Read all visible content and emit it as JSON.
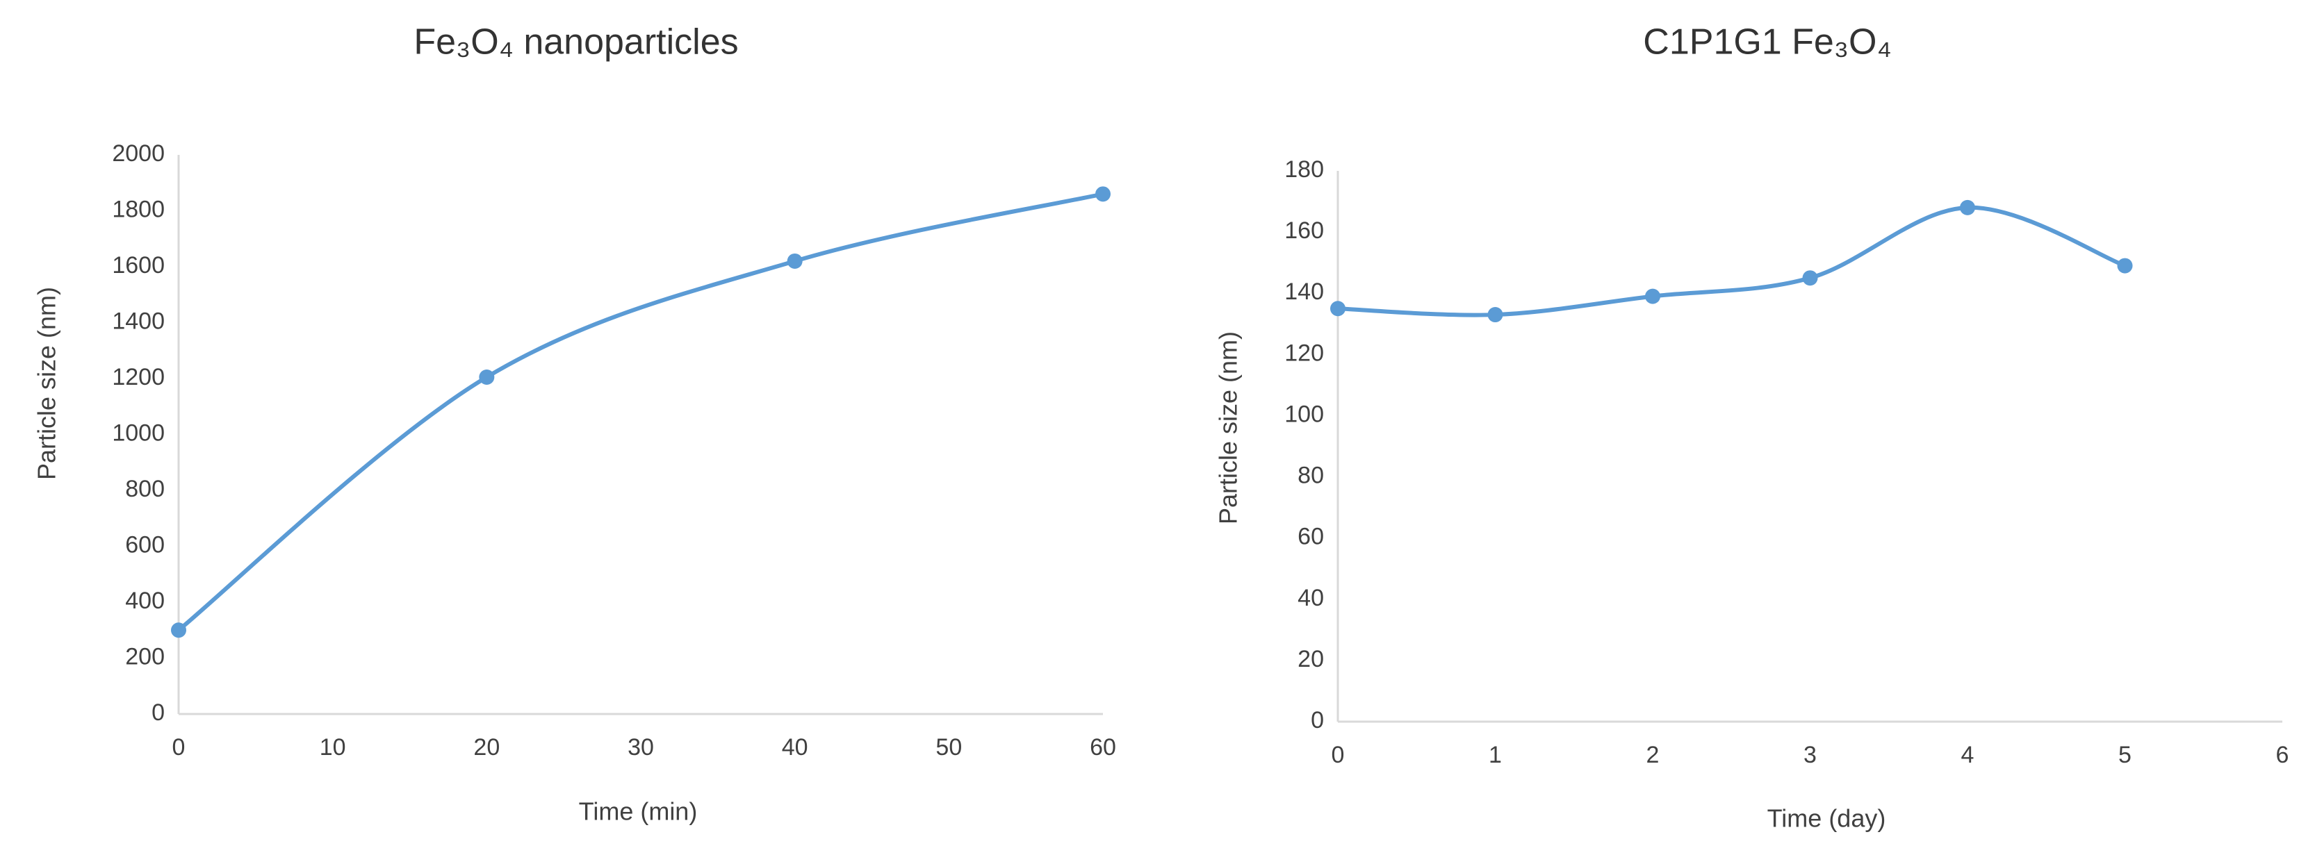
{
  "chart_data": [
    {
      "type": "line",
      "title": "Fe₃O₄ nanoparticles",
      "x_label": "Time (min)",
      "y_label": "Particle size (nm)",
      "x": [
        0,
        20,
        40,
        60
      ],
      "values": [
        300,
        1205,
        1620,
        1860
      ],
      "color": "#5b9bd5",
      "smooth": true,
      "xlim": [
        0,
        60
      ],
      "xticks": [
        0,
        10,
        20,
        30,
        40,
        50,
        60
      ],
      "ylim": [
        0,
        2000
      ],
      "yticks": [
        0,
        200,
        400,
        600,
        800,
        1000,
        1200,
        1400,
        1600,
        1800,
        2000
      ],
      "grid": false
    },
    {
      "type": "line",
      "title": "C1P1G1 Fe₃O₄",
      "x_label": "Time (day)",
      "y_label": "Particle size (nm)",
      "x": [
        0,
        1,
        2,
        3,
        4,
        5
      ],
      "values": [
        135,
        133,
        139,
        145,
        168,
        149
      ],
      "color": "#5b9bd5",
      "smooth": true,
      "xlim": [
        0,
        6
      ],
      "xticks": [
        0,
        1,
        2,
        3,
        4,
        5,
        6
      ],
      "ylim": [
        0,
        180
      ],
      "yticks": [
        0,
        20,
        40,
        60,
        80,
        100,
        120,
        140,
        160,
        180
      ],
      "grid": false
    }
  ]
}
